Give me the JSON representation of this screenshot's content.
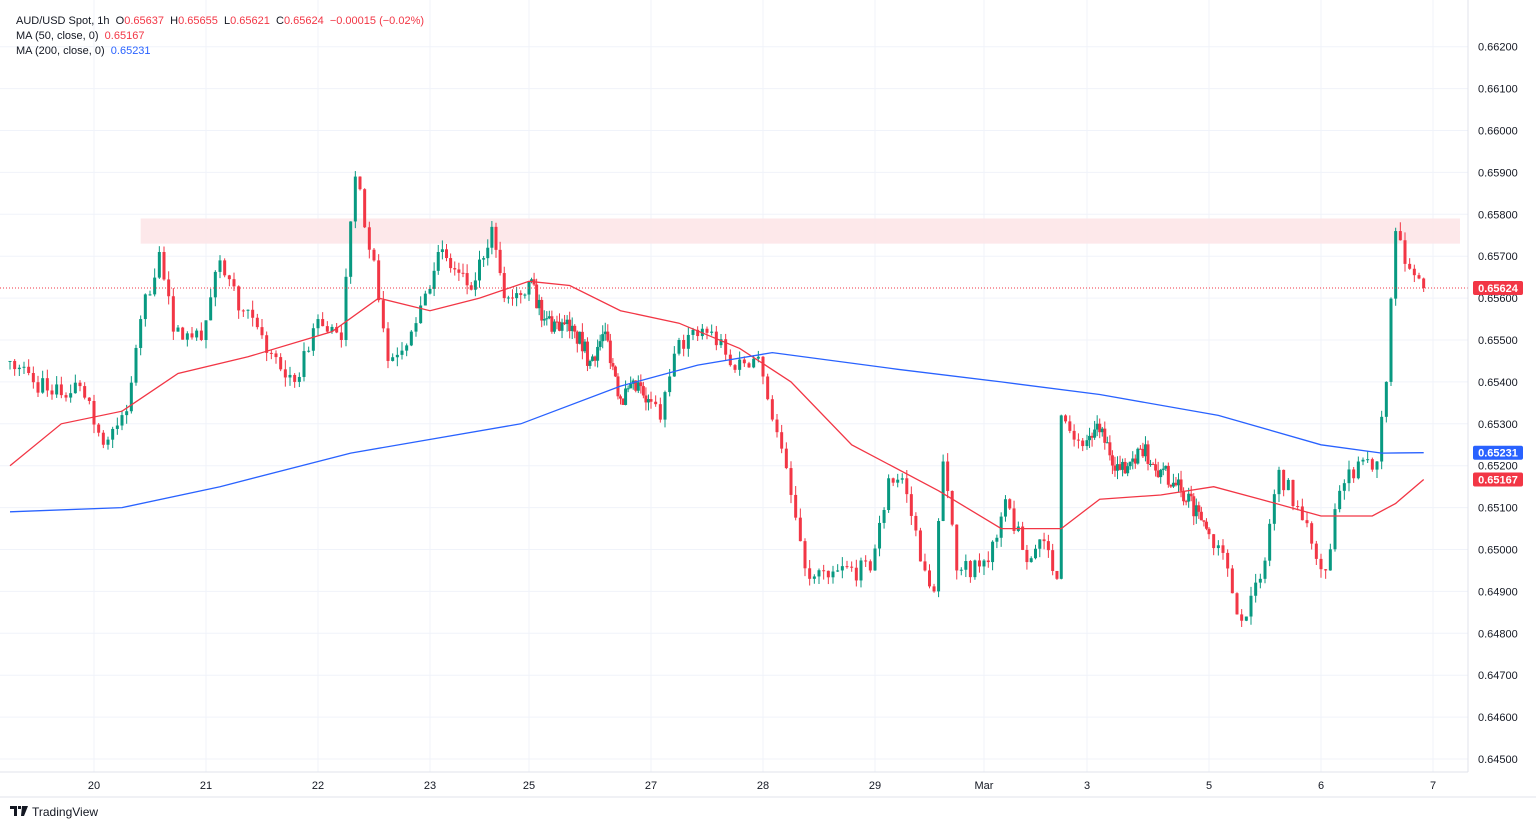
{
  "legend": {
    "symbol": "AUD/USD Spot, 1h",
    "o_label": "O",
    "o": "0.65637",
    "h_label": "H",
    "h": "0.65655",
    "l_label": "L",
    "l": "0.65621",
    "c_label": "C",
    "c": "0.65624",
    "change": "−0.00015 (−0.02%)",
    "ma50_label": "MA (50, close, 0)",
    "ma50_value": "0.65167",
    "ma200_label": "MA (200, close, 0)",
    "ma200_value": "0.65231"
  },
  "footer": {
    "brand": "TradingView",
    "logo_text": "17"
  },
  "colors": {
    "up": "#089981",
    "down": "#f23645",
    "ma50": "#f23645",
    "ma200": "#2962ff",
    "zone": "#fde4e6",
    "grid": "#f0f3fa"
  },
  "chart_data": {
    "type": "candlestick",
    "interval": "1h",
    "grid": true,
    "ylim": [
      0.6645,
      0.6623
    ],
    "y_ticks": [
      "0.66200",
      "0.66100",
      "0.66000",
      "0.65900",
      "0.65800",
      "0.65700",
      "0.65600",
      "0.65500",
      "0.65400",
      "0.65300",
      "0.65200",
      "0.65100",
      "0.65000",
      "0.64900",
      "0.64800",
      "0.64700",
      "0.64600",
      "0.64500"
    ],
    "x_ticks": [
      {
        "label": "20",
        "day": "Feb 20"
      },
      {
        "label": "21",
        "day": "Feb 21"
      },
      {
        "label": "22",
        "day": "Feb 22"
      },
      {
        "label": "23",
        "day": "Feb 23"
      },
      {
        "label": "25",
        "day": "Feb 25"
      },
      {
        "label": "27",
        "day": "Feb 27"
      },
      {
        "label": "28",
        "day": "Feb 28"
      },
      {
        "label": "29",
        "day": "Feb 29"
      },
      {
        "label": "Mar",
        "day": "Mar 1"
      },
      {
        "label": "3",
        "day": "Mar 3"
      },
      {
        "label": "5",
        "day": "Mar 5"
      },
      {
        "label": "6",
        "day": "Mar 6"
      },
      {
        "label": "7",
        "day": "Mar 7"
      }
    ],
    "price_path_approx": [
      [
        "Feb 19 06:00",
        0.6545
      ],
      [
        "Feb 19 15:00",
        0.6537
      ],
      [
        "Feb 19 21:00",
        0.6539
      ],
      [
        "Feb 20 02:00",
        0.6525
      ],
      [
        "Feb 20 07:00",
        0.6533
      ],
      [
        "Feb 20 10:00",
        0.6555
      ],
      [
        "Feb 20 14:00",
        0.6571
      ],
      [
        "Feb 20 17:00",
        0.6552
      ],
      [
        "Feb 20 23:00",
        0.655
      ],
      [
        "Feb 21 03:00",
        0.6569
      ],
      [
        "Feb 21 08:00",
        0.6557
      ],
      [
        "Feb 21 16:00",
        0.6543
      ],
      [
        "Feb 21 19:00",
        0.654
      ],
      [
        "Feb 22 00:00",
        0.6555
      ],
      [
        "Feb 22 05:00",
        0.655
      ],
      [
        "Feb 22 08:00",
        0.6589
      ],
      [
        "Feb 22 12:00",
        0.6569
      ],
      [
        "Feb 22 15:00",
        0.6545
      ],
      [
        "Feb 22 20:00",
        0.6552
      ],
      [
        "Feb 23 02:00",
        0.6571
      ],
      [
        "Feb 23 10:00",
        0.6562
      ],
      [
        "Feb 23 15:00",
        0.6577
      ],
      [
        "Feb 23 18:00",
        0.656
      ],
      [
        "Feb 25 00:00",
        0.6564
      ],
      [
        "Feb 25 06:00",
        0.6555
      ],
      [
        "Feb 25 18:00",
        0.6552
      ],
      [
        "Feb 26 00:00",
        0.6545
      ],
      [
        "Feb 26 06:00",
        0.6552
      ],
      [
        "Feb 26 12:00",
        0.6536
      ],
      [
        "Feb 26 20:00",
        0.6539
      ],
      [
        "Feb 27 02:00",
        0.6531
      ],
      [
        "Feb 27 06:00",
        0.655
      ],
      [
        "Feb 27 13:00",
        0.6552
      ],
      [
        "Feb 27 17:00",
        0.6544
      ],
      [
        "Feb 27 23:00",
        0.6546
      ],
      [
        "Feb 28 03:00",
        0.6528
      ],
      [
        "Feb 28 08:00",
        0.6502
      ],
      [
        "Feb 28 10:00",
        0.6493
      ],
      [
        "Feb 28 16:00",
        0.6495
      ],
      [
        "Feb 28 23:00",
        0.6495
      ],
      [
        "Feb 29 03:00",
        0.6517
      ],
      [
        "Feb 29 06:00",
        0.6517
      ],
      [
        "Feb 29 11:00",
        0.6495
      ],
      [
        "Feb 29 13:00",
        0.649
      ],
      [
        "Feb 29 15:00",
        0.6521
      ],
      [
        "Feb 29 18:00",
        0.6495
      ],
      [
        "Mar 1 01:00",
        0.6497
      ],
      [
        "Mar 1 05:00",
        0.6512
      ],
      [
        "Mar 1 10:00",
        0.6497
      ],
      [
        "Mar 1 14:00",
        0.6502
      ],
      [
        "Mar 1 17:00",
        0.6493
      ],
      [
        "Mar 1 18:00",
        0.6532
      ],
      [
        "Mar 1 22:00",
        0.6526
      ],
      [
        "Mar 3 05:00",
        0.6528
      ],
      [
        "Mar 3 13:00",
        0.6519
      ],
      [
        "Mar 3 21:00",
        0.6524
      ],
      [
        "Mar 4 05:00",
        0.6519
      ],
      [
        "Mar 4 13:00",
        0.6514
      ],
      [
        "Mar 4 20:00",
        0.6509
      ],
      [
        "Mar 5 02:00",
        0.6501
      ],
      [
        "Mar 5 07:00",
        0.6483
      ],
      [
        "Mar 5 11:00",
        0.6493
      ],
      [
        "Mar 5 15:00",
        0.6519
      ],
      [
        "Mar 5 20:00",
        0.6507
      ],
      [
        "Mar 6 01:00",
        0.6495
      ],
      [
        "Mar 6 04:00",
        0.6514
      ],
      [
        "Mar 6 08:00",
        0.6521
      ],
      [
        "Mar 6 12:00",
        0.6521
      ],
      [
        "Mar 6 14:00",
        0.654
      ],
      [
        "Mar 6 16:00",
        0.6576
      ],
      [
        "Mar 6 19:00",
        0.6567
      ],
      [
        "Mar 6 22:00",
        0.65624
      ]
    ],
    "series": [
      {
        "name": "MA (50, close, 0)",
        "values": [
          [
            "Feb 19 06:00",
            0.652
          ],
          [
            "Feb 19 17:00",
            0.653
          ],
          [
            "Feb 20 06:00",
            0.6533
          ],
          [
            "Feb 20 18:00",
            0.6542
          ],
          [
            "Feb 21 09:00",
            0.6546
          ],
          [
            "Feb 22 03:00",
            0.6552
          ],
          [
            "Feb 22 13:00",
            0.656
          ],
          [
            "Feb 23 00:00",
            0.6557
          ],
          [
            "Feb 23 12:00",
            0.656
          ],
          [
            "Feb 25 00:00",
            0.6564
          ],
          [
            "Feb 25 16:00",
            0.6563
          ],
          [
            "Feb 26 12:00",
            0.6557
          ],
          [
            "Feb 27 06:00",
            0.6554
          ],
          [
            "Feb 27 19:00",
            0.6548
          ],
          [
            "Feb 28 06:00",
            0.654
          ],
          [
            "Feb 28 19:00",
            0.6525
          ],
          [
            "Feb 29 14:00",
            0.6514
          ],
          [
            "Mar 1 04:00",
            0.6505
          ],
          [
            "Mar 1 18:00",
            0.6505
          ],
          [
            "Mar 3 05:00",
            0.6512
          ],
          [
            "Mar 4 05:00",
            0.6513
          ],
          [
            "Mar 5 01:00",
            0.6515
          ],
          [
            "Mar 5 11:00",
            0.6512
          ],
          [
            "Mar 6 00:00",
            0.6508
          ],
          [
            "Mar 6 11:00",
            0.6508
          ],
          [
            "Mar 6 16:00",
            0.6511
          ],
          [
            "Mar 6 22:00",
            0.65167
          ]
        ]
      },
      {
        "name": "MA (200, close, 0)",
        "values": [
          [
            "Feb 19 06:00",
            0.6509
          ],
          [
            "Feb 20 06:00",
            0.651
          ],
          [
            "Feb 21 03:00",
            0.6515
          ],
          [
            "Feb 22 07:00",
            0.6523
          ],
          [
            "Feb 23 22:00",
            0.653
          ],
          [
            "Feb 26 12:00",
            0.6539
          ],
          [
            "Feb 27 10:00",
            0.6544
          ],
          [
            "Feb 28 02:00",
            0.6547
          ],
          [
            "Feb 29 05:00",
            0.6543
          ],
          [
            "Mar 1 04:00",
            0.654
          ],
          [
            "Mar 3 05:00",
            0.6537
          ],
          [
            "Mar 5 02:00",
            0.6532
          ],
          [
            "Mar 6 00:00",
            0.6525
          ],
          [
            "Mar 6 13:00",
            0.6523
          ],
          [
            "Mar 6 22:00",
            0.65231
          ]
        ]
      }
    ],
    "resistance_zone": {
      "from": "Feb 20 10:00",
      "to_price": 0.6579,
      "from_price": 0.6573
    },
    "last_price": {
      "value": "0.65624",
      "color": "#f23645"
    },
    "price_labels": [
      {
        "value": "0.65624",
        "color": "#f23645",
        "price": 0.65624
      },
      {
        "value": "0.65231",
        "color": "#2962ff",
        "price": 0.65231
      },
      {
        "value": "0.65167",
        "color": "#f23645",
        "price": 0.65167
      }
    ]
  }
}
